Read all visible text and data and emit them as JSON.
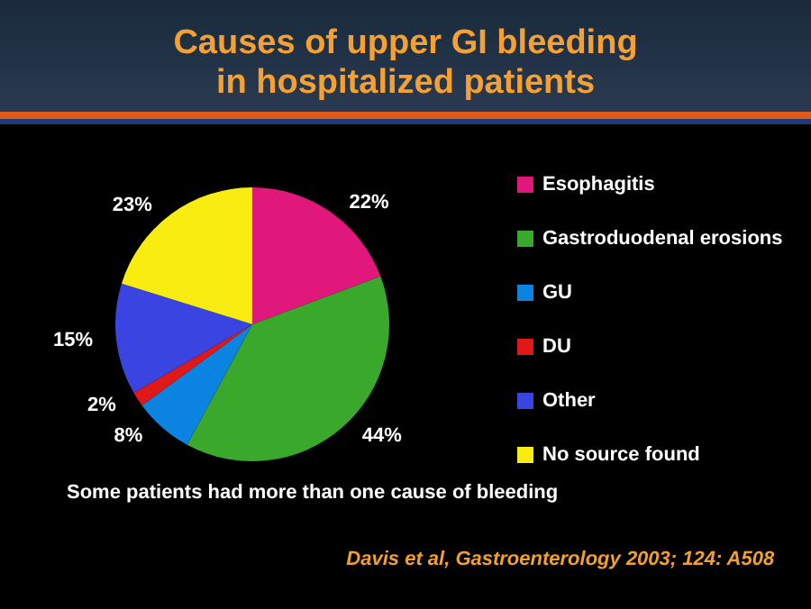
{
  "chart_data": {
    "type": "pie",
    "title": "Causes of upper GI bleeding\nin hospitalized patients",
    "categories": [
      "Esophagitis",
      "Gastroduodenal erosions",
      "GU",
      "DU",
      "Other",
      "No source found"
    ],
    "values": [
      22,
      44,
      8,
      2,
      15,
      23
    ],
    "value_labels": [
      "22%",
      "44%",
      "8%",
      "2%",
      "15%",
      "23%"
    ],
    "colors": [
      "#e0187c",
      "#3aa82a",
      "#0a84e0",
      "#e01818",
      "#3a44e0",
      "#f8ec10"
    ],
    "legend": "right",
    "annotations": [
      "Some patients had more than one cause of bleeding",
      "Davis et al, Gastroenterology 2003; 124: A508"
    ]
  }
}
